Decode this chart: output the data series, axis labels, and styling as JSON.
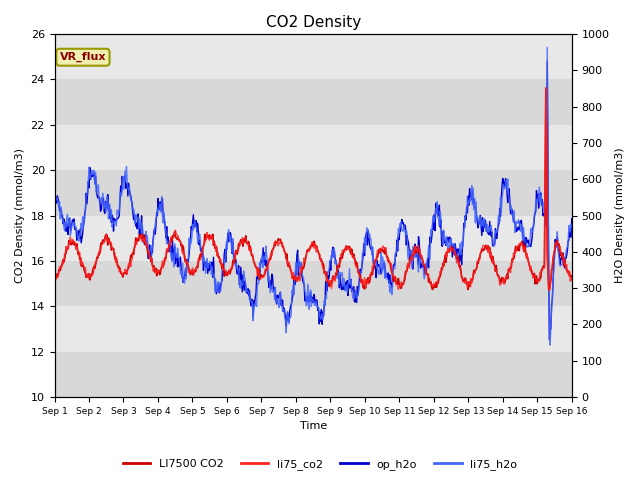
{
  "title": "CO2 Density",
  "xlabel": "Time",
  "ylabel_left": "CO2 Density (mmol/m3)",
  "ylabel_right": "H2O Density (mmol/m3)",
  "ylim_left": [
    10,
    26
  ],
  "ylim_right": [
    0,
    1000
  ],
  "yticks_left": [
    10,
    12,
    14,
    16,
    18,
    20,
    22,
    24,
    26
  ],
  "yticks_right": [
    0,
    100,
    200,
    300,
    400,
    500,
    600,
    700,
    800,
    900,
    1000
  ],
  "xtick_labels": [
    "Sep 1",
    "Sep 2",
    "Sep 3",
    "Sep 4",
    "Sep 5",
    "Sep 6",
    "Sep 7",
    "Sep 8",
    "Sep 9",
    "Sep 10",
    "Sep 11",
    "Sep 12",
    "Sep 13",
    "Sep 14",
    "Sep 15",
    "Sep 16"
  ],
  "vr_flux_label": "VR_flux",
  "legend_labels": [
    "LI7500 CO2",
    "li75_co2",
    "op_h2o",
    "li75_h2o"
  ],
  "color_li7500": "#cc0000",
  "color_li75_co2": "#ff2222",
  "color_op_h2o": "#0000cc",
  "color_li75_h2o": "#4466ff",
  "background_color": "#e8e8e8",
  "grid_color": "#f5f5f5",
  "n_days": 15,
  "points_per_day": 48,
  "figsize": [
    6.4,
    4.8
  ],
  "dpi": 100
}
